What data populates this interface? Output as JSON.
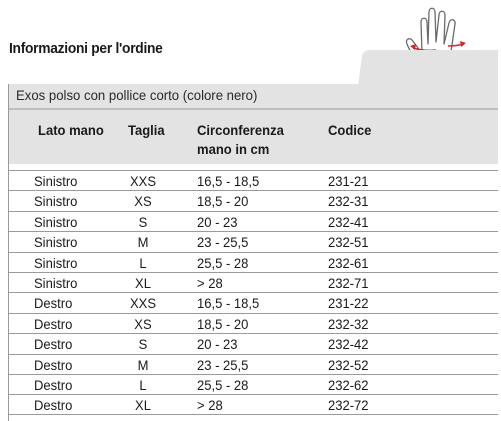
{
  "title": "Informazioni per l'ordine",
  "product": "Exos polso con pollice corto   (colore nero)",
  "headers": {
    "side": "Lato mano",
    "size": "Taglia",
    "circumference_line1": "Circonferenza",
    "circumference_line2": "mano in cm",
    "code": "Codice"
  },
  "rows": [
    {
      "side": "Sinistro",
      "size": "XXS",
      "circ": "16,5 - 18,5",
      "code": "231-21"
    },
    {
      "side": "Sinistro",
      "size": "XS",
      "circ": "18,5 - 20",
      "code": "232-31"
    },
    {
      "side": "Sinistro",
      "size": "S",
      "circ": "20 - 23",
      "code": "232-41"
    },
    {
      "side": "Sinistro",
      "size": "M",
      "circ": "23 - 25,5",
      "code": "232-51"
    },
    {
      "side": "Sinistro",
      "size": "L",
      "circ": "25,5 - 28",
      "code": "232-61"
    },
    {
      "side": "Sinistro",
      "size": "XL",
      "circ": "> 28",
      "code": "232-71"
    },
    {
      "side": "Destro",
      "size": "XXS",
      "circ": "16,5 - 18,5",
      "code": "231-22"
    },
    {
      "side": "Destro",
      "size": "XS",
      "circ": "18,5 - 20",
      "code": "232-32"
    },
    {
      "side": "Destro",
      "size": "S",
      "circ": "20 - 23",
      "code": "232-42"
    },
    {
      "side": "Destro",
      "size": "M",
      "circ": "23 - 25,5",
      "code": "232-52"
    },
    {
      "side": "Destro",
      "size": "L",
      "circ": "25,5 - 28",
      "code": "232-62"
    },
    {
      "side": "Destro",
      "size": "XL",
      "circ": "> 28",
      "code": "232-72"
    }
  ],
  "colors": {
    "header_grey": "#e3e3e3",
    "rule": "#9a9a9a",
    "arrow_red": "#d8232a"
  },
  "icons": [
    "hand-measure-icon"
  ]
}
